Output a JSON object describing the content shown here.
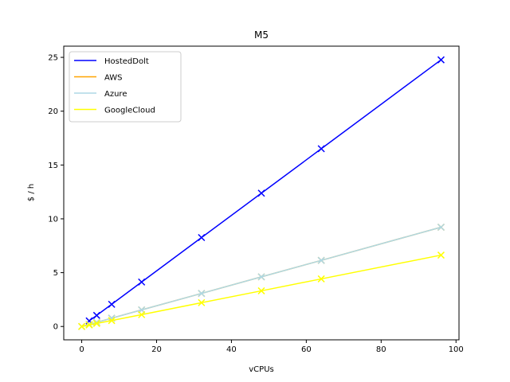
{
  "chart_data": {
    "type": "line",
    "title": "M5",
    "xlabel": "vCPUs",
    "ylabel": "$ / h",
    "xlim": [
      -4.8,
      100.8
    ],
    "ylim": [
      -1.24,
      26.04
    ],
    "xticks": [
      0,
      20,
      40,
      60,
      80,
      100
    ],
    "yticks": [
      0,
      5,
      10,
      15,
      20,
      25
    ],
    "grid": false,
    "legend_position": "top-left",
    "markers": "x",
    "series": [
      {
        "name": "HostedDolt",
        "color": "#0000ff",
        "x": [
          2,
          4,
          8,
          16,
          32,
          48,
          64,
          96
        ],
        "y": [
          0.52,
          1.03,
          2.06,
          4.13,
          8.26,
          12.38,
          16.51,
          24.77
        ]
      },
      {
        "name": "AWS",
        "color": "#ffa500",
        "x": [
          0,
          2,
          4,
          8,
          16,
          32,
          48,
          64,
          96
        ],
        "y": [
          0.0,
          0.19,
          0.38,
          0.77,
          1.54,
          3.07,
          4.61,
          6.14,
          9.22
        ]
      },
      {
        "name": "Azure",
        "color": "#add8e6",
        "x": [
          0,
          2,
          4,
          8,
          16,
          32,
          48,
          64,
          96
        ],
        "y": [
          0.0,
          0.19,
          0.38,
          0.77,
          1.54,
          3.07,
          4.61,
          6.14,
          9.22
        ]
      },
      {
        "name": "GoogleCloud",
        "color": "#ffff00",
        "x": [
          0,
          2,
          4,
          8,
          16,
          32,
          48,
          64,
          96
        ],
        "y": [
          0.0,
          0.14,
          0.28,
          0.55,
          1.1,
          2.21,
          3.31,
          4.42,
          6.63
        ]
      }
    ]
  }
}
